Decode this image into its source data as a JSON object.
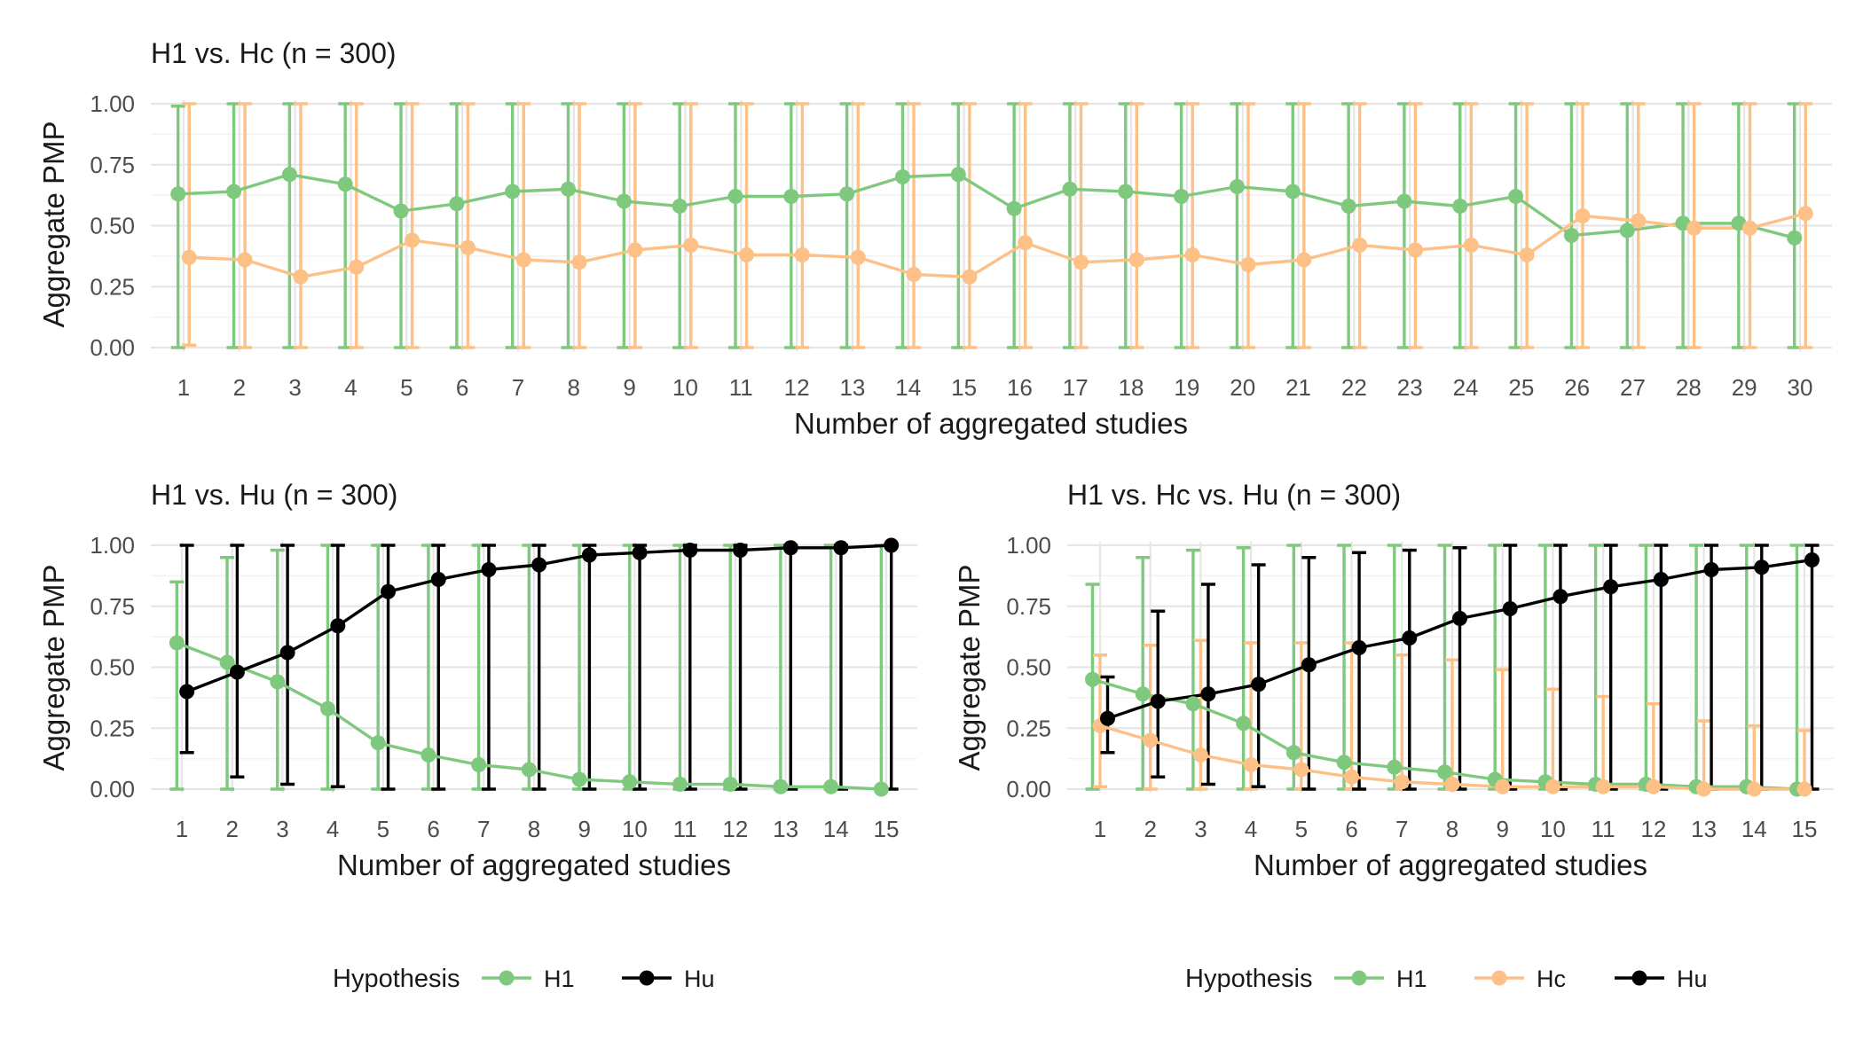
{
  "chart_data": [
    {
      "type": "line",
      "title": "H1 vs. Hc (n = 300)",
      "xlabel": "Number of aggregated studies",
      "ylabel": "Aggregate PMP",
      "ylim": [
        0,
        1
      ],
      "y_ticks": [
        "0.00",
        "0.25",
        "0.50",
        "0.75",
        "1.00"
      ],
      "x": [
        1,
        2,
        3,
        4,
        5,
        6,
        7,
        8,
        9,
        10,
        11,
        12,
        13,
        14,
        15,
        16,
        17,
        18,
        19,
        20,
        21,
        22,
        23,
        24,
        25,
        26,
        27,
        28,
        29,
        30
      ],
      "grid": true,
      "series": [
        {
          "name": "H1",
          "color": "#7fc97f",
          "values": [
            0.63,
            0.64,
            0.71,
            0.67,
            0.56,
            0.59,
            0.64,
            0.65,
            0.6,
            0.58,
            0.62,
            0.62,
            0.63,
            0.7,
            0.71,
            0.57,
            0.65,
            0.64,
            0.62,
            0.66,
            0.64,
            0.58,
            0.6,
            0.58,
            0.62,
            0.46,
            0.48,
            0.51,
            0.51,
            0.45
          ],
          "lower": [
            0.0,
            0.0,
            0.0,
            0.0,
            0.0,
            0.0,
            0.0,
            0.0,
            0.0,
            0.0,
            0.0,
            0.0,
            0.0,
            0.0,
            0.0,
            0.0,
            0.0,
            0.0,
            0.0,
            0.0,
            0.0,
            0.0,
            0.0,
            0.0,
            0.0,
            0.0,
            0.0,
            0.0,
            0.0,
            0.0
          ],
          "upper": [
            0.99,
            1.0,
            1.0,
            1.0,
            1.0,
            1.0,
            1.0,
            1.0,
            1.0,
            1.0,
            1.0,
            1.0,
            1.0,
            1.0,
            1.0,
            1.0,
            1.0,
            1.0,
            1.0,
            1.0,
            1.0,
            1.0,
            1.0,
            1.0,
            1.0,
            1.0,
            1.0,
            1.0,
            1.0,
            1.0
          ]
        },
        {
          "name": "Hc",
          "color": "#fdc086",
          "values": [
            0.37,
            0.36,
            0.29,
            0.33,
            0.44,
            0.41,
            0.36,
            0.35,
            0.4,
            0.42,
            0.38,
            0.38,
            0.37,
            0.3,
            0.29,
            0.43,
            0.35,
            0.36,
            0.38,
            0.34,
            0.36,
            0.42,
            0.4,
            0.42,
            0.38,
            0.54,
            0.52,
            0.49,
            0.49,
            0.55
          ],
          "lower": [
            0.01,
            0.0,
            0.0,
            0.0,
            0.0,
            0.0,
            0.0,
            0.0,
            0.0,
            0.0,
            0.0,
            0.0,
            0.0,
            0.0,
            0.0,
            0.0,
            0.0,
            0.0,
            0.0,
            0.0,
            0.0,
            0.0,
            0.0,
            0.0,
            0.0,
            0.0,
            0.0,
            0.0,
            0.0,
            0.0
          ],
          "upper": [
            1.0,
            1.0,
            1.0,
            1.0,
            1.0,
            1.0,
            1.0,
            1.0,
            1.0,
            1.0,
            1.0,
            1.0,
            1.0,
            1.0,
            1.0,
            1.0,
            1.0,
            1.0,
            1.0,
            1.0,
            1.0,
            1.0,
            1.0,
            1.0,
            1.0,
            1.0,
            1.0,
            1.0,
            1.0,
            1.0
          ]
        }
      ]
    },
    {
      "type": "line",
      "title": "H1 vs. Hu (n = 300)",
      "xlabel": "Number of aggregated studies",
      "ylabel": "Aggregate PMP",
      "ylim": [
        0,
        1
      ],
      "y_ticks": [
        "0.00",
        "0.25",
        "0.50",
        "0.75",
        "1.00"
      ],
      "x": [
        1,
        2,
        3,
        4,
        5,
        6,
        7,
        8,
        9,
        10,
        11,
        12,
        13,
        14,
        15
      ],
      "grid": true,
      "series": [
        {
          "name": "H1",
          "color": "#7fc97f",
          "values": [
            0.6,
            0.52,
            0.44,
            0.33,
            0.19,
            0.14,
            0.1,
            0.08,
            0.04,
            0.03,
            0.02,
            0.02,
            0.01,
            0.01,
            0.0
          ],
          "lower": [
            0.0,
            0.0,
            0.0,
            0.0,
            0.0,
            0.0,
            0.0,
            0.0,
            0.0,
            0.0,
            0.0,
            0.0,
            0.0,
            0.0,
            0.0
          ],
          "upper": [
            0.85,
            0.95,
            0.98,
            1.0,
            1.0,
            1.0,
            1.0,
            1.0,
            1.0,
            1.0,
            1.0,
            1.0,
            1.0,
            1.0,
            1.0
          ]
        },
        {
          "name": "Hu",
          "color": "#000000",
          "values": [
            0.4,
            0.48,
            0.56,
            0.67,
            0.81,
            0.86,
            0.9,
            0.92,
            0.96,
            0.97,
            0.98,
            0.98,
            0.99,
            0.99,
            1.0
          ],
          "lower": [
            0.15,
            0.05,
            0.02,
            0.01,
            0.0,
            0.0,
            0.0,
            0.0,
            0.0,
            0.0,
            0.0,
            0.0,
            0.0,
            0.0,
            0.0
          ],
          "upper": [
            1.0,
            1.0,
            1.0,
            1.0,
            1.0,
            1.0,
            1.0,
            1.0,
            1.0,
            1.0,
            1.0,
            1.0,
            1.0,
            1.0,
            1.0
          ]
        }
      ],
      "legend": {
        "title": "Hypothesis",
        "items": [
          "H1",
          "Hu"
        ],
        "position": "bottom"
      }
    },
    {
      "type": "line",
      "title": "H1 vs. Hc vs. Hu (n = 300)",
      "xlabel": "Number of aggregated studies",
      "ylabel": "Aggregate PMP",
      "ylim": [
        0,
        1
      ],
      "y_ticks": [
        "0.00",
        "0.25",
        "0.50",
        "0.75",
        "1.00"
      ],
      "x": [
        1,
        2,
        3,
        4,
        5,
        6,
        7,
        8,
        9,
        10,
        11,
        12,
        13,
        14,
        15
      ],
      "grid": true,
      "series": [
        {
          "name": "H1",
          "color": "#7fc97f",
          "values": [
            0.45,
            0.39,
            0.35,
            0.27,
            0.15,
            0.11,
            0.09,
            0.07,
            0.04,
            0.03,
            0.02,
            0.02,
            0.01,
            0.01,
            0.0
          ],
          "lower": [
            0.0,
            0.0,
            0.0,
            0.0,
            0.0,
            0.0,
            0.0,
            0.0,
            0.0,
            0.0,
            0.0,
            0.0,
            0.0,
            0.0,
            0.0
          ],
          "upper": [
            0.84,
            0.95,
            0.98,
            0.99,
            1.0,
            1.0,
            1.0,
            1.0,
            1.0,
            1.0,
            1.0,
            1.0,
            1.0,
            1.0,
            1.0
          ]
        },
        {
          "name": "Hc",
          "color": "#fdc086",
          "values": [
            0.26,
            0.2,
            0.14,
            0.1,
            0.08,
            0.05,
            0.03,
            0.02,
            0.01,
            0.01,
            0.01,
            0.01,
            0.0,
            0.0,
            0.0
          ],
          "lower": [
            0.01,
            0.0,
            0.0,
            0.0,
            0.0,
            0.0,
            0.0,
            0.0,
            0.0,
            0.0,
            0.0,
            0.0,
            0.0,
            0.0,
            0.0
          ],
          "upper": [
            0.55,
            0.59,
            0.61,
            0.6,
            0.6,
            0.6,
            0.55,
            0.53,
            0.49,
            0.41,
            0.38,
            0.35,
            0.28,
            0.26,
            0.24
          ]
        },
        {
          "name": "Hu",
          "color": "#000000",
          "values": [
            0.29,
            0.36,
            0.39,
            0.43,
            0.51,
            0.58,
            0.62,
            0.7,
            0.74,
            0.79,
            0.83,
            0.86,
            0.9,
            0.91,
            0.94
          ],
          "lower": [
            0.15,
            0.05,
            0.02,
            0.01,
            0.0,
            0.0,
            0.0,
            0.0,
            0.0,
            0.0,
            0.0,
            0.0,
            0.0,
            0.0,
            0.0
          ],
          "upper": [
            0.46,
            0.73,
            0.84,
            0.92,
            0.95,
            0.97,
            0.98,
            0.99,
            1.0,
            1.0,
            1.0,
            1.0,
            1.0,
            1.0,
            1.0
          ]
        }
      ],
      "legend": {
        "title": "Hypothesis",
        "items": [
          "H1",
          "Hc",
          "Hu"
        ],
        "position": "bottom"
      }
    }
  ]
}
